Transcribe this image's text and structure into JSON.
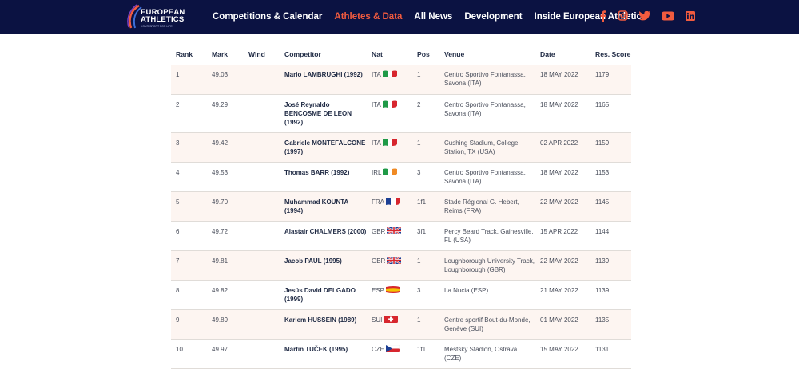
{
  "brand": {
    "line1": "EUROPEAN",
    "line2": "ATHLETICS",
    "tagline": "YOUR SPORT FOR LIFE"
  },
  "nav": [
    {
      "label": "Competitions & Calendar"
    },
    {
      "label": "Athletes & Data"
    },
    {
      "label": "All News"
    },
    {
      "label": "Development"
    },
    {
      "label": "Inside European Athletics"
    }
  ],
  "nav_active": "Athletes & Data",
  "social_icons": [
    "facebook-icon",
    "instagram-icon",
    "twitter-icon",
    "youtube-icon",
    "linkedin-icon"
  ],
  "colors": {
    "nav_bg": "#0b1242",
    "accent": "#f15b3f",
    "row_tint": "#fdf5f1"
  },
  "table": {
    "headers": {
      "rank": "Rank",
      "mark": "Mark",
      "wind": "Wind",
      "competitor": "Competitor",
      "nat": "Nat",
      "pos": "Pos",
      "venue": "Venue",
      "date": "Date",
      "score": "Res. Score"
    },
    "rows": [
      {
        "rank": "1",
        "mark": "49.03",
        "wind": "",
        "competitor": "Mario LAMBRUGHI (1992)",
        "nat": "ITA",
        "pos": "1",
        "venue": "Centro Sportivo Fontanassa, Savona (ITA)",
        "date": "18 MAY 2022",
        "score": "1179"
      },
      {
        "rank": "2",
        "mark": "49.29",
        "wind": "",
        "competitor": "José Reynaldo BENCOSME DE LEON (1992)",
        "nat": "ITA",
        "pos": "2",
        "venue": "Centro Sportivo Fontanassa, Savona (ITA)",
        "date": "18 MAY 2022",
        "score": "1165"
      },
      {
        "rank": "3",
        "mark": "49.42",
        "wind": "",
        "competitor": "Gabriele MONTEFALCONE (1997)",
        "nat": "ITA",
        "pos": "1",
        "venue": "Cushing Stadium, College Station, TX (USA)",
        "date": "02 APR 2022",
        "score": "1159"
      },
      {
        "rank": "4",
        "mark": "49.53",
        "wind": "",
        "competitor": "Thomas BARR (1992)",
        "nat": "IRL",
        "pos": "3",
        "venue": "Centro Sportivo Fontanassa, Savona (ITA)",
        "date": "18 MAY 2022",
        "score": "1153"
      },
      {
        "rank": "5",
        "mark": "49.70",
        "wind": "",
        "competitor": "Muhammad KOUNTA (1994)",
        "nat": "FRA",
        "pos": "1f1",
        "venue": "Stade Régional G. Hebert, Reims (FRA)",
        "date": "22 MAY 2022",
        "score": "1145"
      },
      {
        "rank": "6",
        "mark": "49.72",
        "wind": "",
        "competitor": "Alastair CHALMERS (2000)",
        "nat": "GBR",
        "pos": "3f1",
        "venue": "Percy Beard Track, Gainesville, FL (USA)",
        "date": "15 APR 2022",
        "score": "1144"
      },
      {
        "rank": "7",
        "mark": "49.81",
        "wind": "",
        "competitor": "Jacob PAUL (1995)",
        "nat": "GBR",
        "pos": "1",
        "venue": "Loughborough University Track, Loughborough (GBR)",
        "date": "22 MAY 2022",
        "score": "1139"
      },
      {
        "rank": "8",
        "mark": "49.82",
        "wind": "",
        "competitor": "Jesús David DELGADO (1999)",
        "nat": "ESP",
        "pos": "3",
        "venue": "La Nucia (ESP)",
        "date": "21 MAY 2022",
        "score": "1139"
      },
      {
        "rank": "9",
        "mark": "49.89",
        "wind": "",
        "competitor": "Kariem HUSSEIN (1989)",
        "nat": "SUI",
        "pos": "1",
        "venue": "Centre sportif Bout-du-Monde, Genève (SUI)",
        "date": "01 MAY 2022",
        "score": "1135"
      },
      {
        "rank": "10",
        "mark": "49.97",
        "wind": "",
        "competitor": "Martin TUČEK (1995)",
        "nat": "CZE",
        "pos": "1f1",
        "venue": "Mestský Stadion, Ostrava (CZE)",
        "date": "15 MAY 2022",
        "score": "1131"
      }
    ]
  }
}
